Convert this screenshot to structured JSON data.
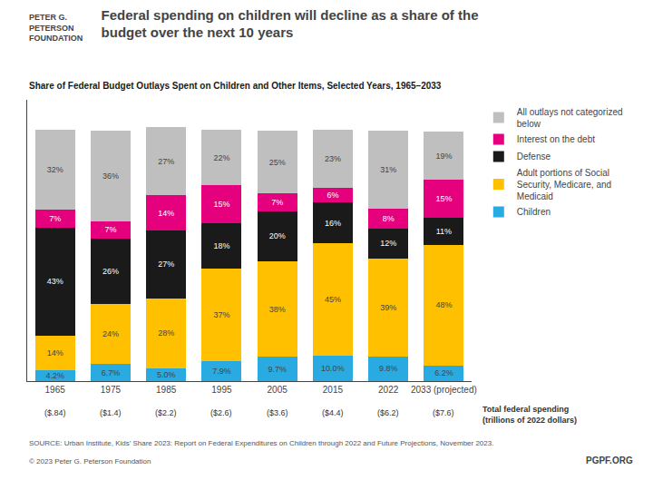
{
  "chart_data": {
    "type": "bar",
    "stacked": true,
    "data_labels": true,
    "grid": false,
    "tick_labels": "x",
    "legend": "right",
    "title": "Federal spending on children will decline as a share of the\nbudget over the next 10 years",
    "subtitle": "Share of Federal Budget Outlays Spent on Children and Other Items, Selected Years, 1965–2033",
    "categories": [
      "1965",
      "1975",
      "1985",
      "1995",
      "2005",
      "2015",
      "2022",
      "2033 (projected)"
    ],
    "ylim": [
      0,
      112
    ],
    "series": [
      {
        "name": "Children",
        "color": "#29ABE2",
        "values": [
          4.2,
          6.7,
          5.0,
          7.9,
          9.7,
          10.0,
          9.8,
          6.2
        ],
        "value_labels": [
          "4.2%",
          "6.7%",
          "5.0%",
          "7.9%",
          "9.7%",
          "10.0%",
          "9.8%",
          "6.2%"
        ]
      },
      {
        "name": "Adult portions of Social\nSecurity, Medicare, and\nMedicaid",
        "color": "#FFC000",
        "values": [
          14,
          24,
          28,
          37,
          38,
          45,
          39,
          48
        ],
        "value_labels": [
          "14%",
          "24%",
          "28%",
          "37%",
          "38%",
          "45%",
          "39%",
          "48%"
        ]
      },
      {
        "name": "Defense",
        "color": "#1A1A1A",
        "values": [
          43,
          26,
          27,
          18,
          20,
          16,
          12,
          11
        ],
        "value_labels": [
          "43%",
          "26%",
          "27%",
          "18%",
          "20%",
          "16%",
          "12%",
          "11%"
        ]
      },
      {
        "name": "Interest on the debt",
        "color": "#E5007E",
        "values": [
          7,
          7,
          14,
          15,
          7,
          6,
          8,
          15
        ],
        "value_labels": [
          "7%",
          "7%",
          "14%",
          "15%",
          "7%",
          "6%",
          "8%",
          "15%"
        ]
      },
      {
        "name": "All outlays not categorized\nbelow",
        "color": "#BFBFBF",
        "values": [
          32,
          36,
          27,
          22,
          25,
          23,
          31,
          19
        ],
        "value_labels": [
          "32%",
          "36%",
          "27%",
          "22%",
          "25%",
          "23%",
          "31%",
          "19%"
        ]
      }
    ],
    "annotations": [
      {
        "category": "1965",
        "text": "($.84)"
      },
      {
        "category": "1975",
        "text": "($1.4)"
      },
      {
        "category": "1985",
        "text": "($2.2)"
      },
      {
        "category": "1995",
        "text": "($2.6)"
      },
      {
        "category": "2005",
        "text": "($3.6)"
      },
      {
        "category": "2015",
        "text": "($4.4)"
      },
      {
        "category": "2022",
        "text": "($6.2)"
      },
      {
        "category": "2033 (projected)",
        "text": "($7.6)"
      }
    ],
    "totals_title": "Total federal spending\n(trillions of 2022 dollars)",
    "source": "SOURCE: Urban Institute, Kids’ Share 2023: Report on Federal Expenditures on Children through 2022 and Future Projections, November 2023.",
    "copyright": "© 2023 Peter G. Peterson Foundation",
    "credit": "PGPF.ORG",
    "logo": [
      "PETER G.",
      "PETERSON",
      "FOUNDATION"
    ]
  }
}
